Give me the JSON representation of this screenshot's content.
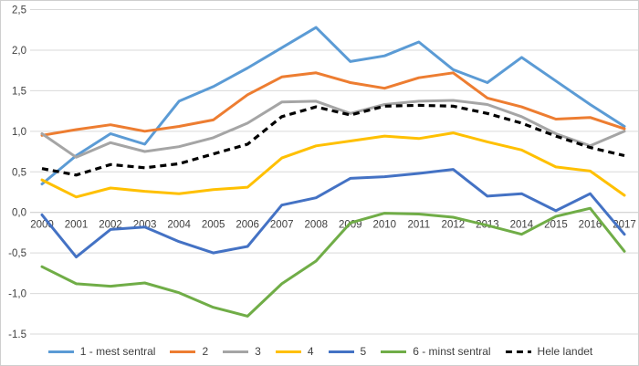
{
  "chart_data": {
    "type": "line",
    "title": "",
    "xlabel": "",
    "ylabel": "",
    "grid": true,
    "legend_position": "bottom",
    "ylim": [
      -1.5,
      2.5
    ],
    "y_ticks": [
      {
        "value": 2.5,
        "label": "2,5"
      },
      {
        "value": 2.0,
        "label": "2,0"
      },
      {
        "value": 1.5,
        "label": "1,5"
      },
      {
        "value": 1.0,
        "label": "1,0"
      },
      {
        "value": 0.5,
        "label": "0,5"
      },
      {
        "value": 0.0,
        "label": "0,0"
      },
      {
        "value": -0.5,
        "label": "-0,5"
      },
      {
        "value": -1.0,
        "label": "-1,0"
      },
      {
        "value": -1.5,
        "label": "-1,5"
      }
    ],
    "x": [
      "2000",
      "2001",
      "2002",
      "2003",
      "2004",
      "2005",
      "2006",
      "2007",
      "2008",
      "2009",
      "2010",
      "2011",
      "2012",
      "2013",
      "2014",
      "2015",
      "2016",
      "2017"
    ],
    "series": [
      {
        "name": "1 - mest sentral",
        "color": "#5B9BD5",
        "dash": false,
        "values": [
          0.35,
          0.7,
          0.97,
          0.84,
          1.37,
          1.55,
          1.78,
          2.03,
          2.28,
          1.86,
          1.93,
          2.1,
          1.76,
          1.6,
          1.91,
          1.62,
          1.33,
          1.06
        ]
      },
      {
        "name": "2",
        "color": "#ED7D31",
        "dash": false,
        "values": [
          0.95,
          1.02,
          1.08,
          1.0,
          1.06,
          1.14,
          1.45,
          1.67,
          1.72,
          1.6,
          1.53,
          1.66,
          1.72,
          1.41,
          1.3,
          1.15,
          1.17,
          1.03
        ]
      },
      {
        "name": "3",
        "color": "#A5A5A5",
        "dash": false,
        "values": [
          0.97,
          0.68,
          0.86,
          0.75,
          0.81,
          0.92,
          1.1,
          1.36,
          1.37,
          1.22,
          1.33,
          1.37,
          1.38,
          1.33,
          1.18,
          0.97,
          0.82,
          1.0
        ]
      },
      {
        "name": "4",
        "color": "#FFC000",
        "dash": false,
        "values": [
          0.4,
          0.19,
          0.3,
          0.26,
          0.23,
          0.28,
          0.31,
          0.67,
          0.82,
          0.88,
          0.94,
          0.91,
          0.98,
          0.87,
          0.77,
          0.56,
          0.51,
          0.21
        ]
      },
      {
        "name": "5",
        "color": "#4472C4",
        "dash": false,
        "values": [
          -0.03,
          -0.55,
          -0.21,
          -0.18,
          -0.36,
          -0.5,
          -0.42,
          0.09,
          0.18,
          0.42,
          0.44,
          0.48,
          0.53,
          0.2,
          0.23,
          0.02,
          0.23,
          -0.27
        ]
      },
      {
        "name": "6 - minst sentral",
        "color": "#70AD47",
        "dash": false,
        "values": [
          -0.67,
          -0.88,
          -0.91,
          -0.87,
          -0.99,
          -1.17,
          -1.28,
          -0.88,
          -0.6,
          -0.13,
          -0.01,
          -0.02,
          -0.06,
          -0.16,
          -0.27,
          -0.05,
          0.05,
          -0.48
        ]
      },
      {
        "name": "Hele landet",
        "color": "#000000",
        "dash": true,
        "values": [
          0.54,
          0.46,
          0.59,
          0.55,
          0.6,
          0.72,
          0.84,
          1.18,
          1.3,
          1.2,
          1.31,
          1.32,
          1.31,
          1.22,
          1.1,
          0.94,
          0.8,
          0.7
        ]
      }
    ]
  }
}
